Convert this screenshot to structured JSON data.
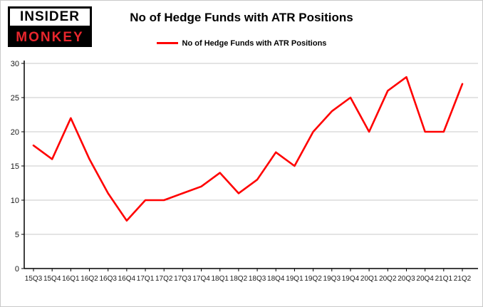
{
  "logo": {
    "line1": "INSIDER",
    "line2": "MONKEY"
  },
  "header": {
    "title": "No of Hedge Funds with ATR Positions"
  },
  "legend": {
    "label": "No of Hedge Funds with ATR Positions",
    "color": "#ff0000"
  },
  "chart_data": {
    "type": "line",
    "title": "No of Hedge Funds with ATR Positions",
    "categories": [
      "15Q3",
      "15Q4",
      "16Q1",
      "16Q2",
      "16Q3",
      "16Q4",
      "17Q1",
      "17Q2",
      "17Q3",
      "17Q4",
      "18Q1",
      "18Q2",
      "18Q3",
      "18Q4",
      "19Q1",
      "19Q2",
      "19Q3",
      "19Q4",
      "20Q1",
      "20Q2",
      "20Q3",
      "20Q4",
      "21Q1",
      "21Q2"
    ],
    "series": [
      {
        "name": "No of Hedge Funds with ATR Positions",
        "color": "#ff0000",
        "values": [
          18,
          16,
          22,
          16,
          11,
          7,
          10,
          10,
          11,
          12,
          14,
          11,
          13,
          17,
          15,
          20,
          23,
          25,
          20,
          26,
          28,
          20,
          20,
          27
        ]
      }
    ],
    "xlabel": "",
    "ylabel": "",
    "ylim": [
      0,
      30
    ],
    "yticks": [
      0,
      5,
      10,
      15,
      20,
      25,
      30
    ],
    "grid": true,
    "grid_color": "#c8c8c8",
    "axis_color": "#000000",
    "legend_position": "top"
  }
}
